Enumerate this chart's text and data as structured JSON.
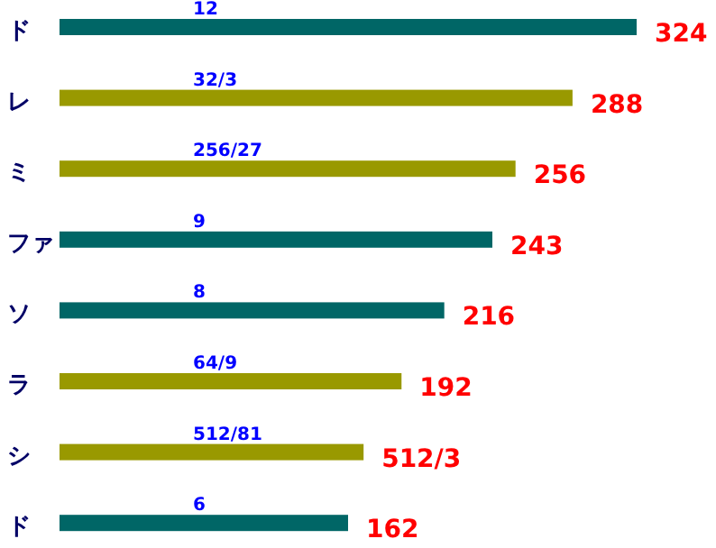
{
  "chart_data": {
    "type": "bar",
    "orientation": "horizontal",
    "categories": [
      "ド",
      "レ",
      "ミ",
      "ファ",
      "ソ",
      "ラ",
      "シ",
      "ド"
    ],
    "values": [
      324,
      288,
      256,
      243,
      216,
      192,
      170.7,
      162
    ],
    "colors": [
      "#006666",
      "#999900",
      "#999900",
      "#006666",
      "#006666",
      "#999900",
      "#999900",
      "#006666"
    ],
    "value_labels": [
      "324",
      "288",
      "256",
      "243",
      "216",
      "192",
      "512/3",
      "162"
    ],
    "annotations": [
      "12",
      "32/3",
      "256/27",
      "9",
      "8",
      "64/9",
      "512/81",
      "6"
    ]
  }
}
